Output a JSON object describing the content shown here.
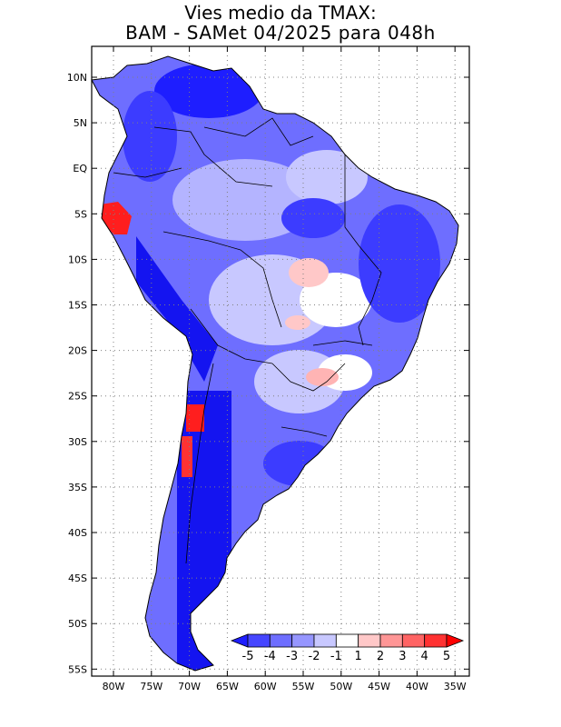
{
  "title": {
    "line1": "Vies medio da TMAX:",
    "line2": "BAM - SAMet 04/2025  para 048h"
  },
  "axes": {
    "lat_labels": [
      "10N",
      "5N",
      "EQ",
      "5S",
      "10S",
      "15S",
      "20S",
      "25S",
      "30S",
      "35S",
      "40S",
      "45S",
      "50S",
      "55S"
    ],
    "lon_labels": [
      "80W",
      "75W",
      "70W",
      "65W",
      "60W",
      "55W",
      "50W",
      "45W",
      "40W",
      "35W"
    ]
  },
  "colorbar": {
    "labels": [
      "-5",
      "-4",
      "-3",
      "-2",
      "-1",
      "1",
      "2",
      "3",
      "4",
      "5"
    ],
    "colors": [
      "#1e1eff",
      "#4646ff",
      "#6e6eff",
      "#9696ff",
      "#c8c8ff",
      "#ffffff",
      "#ffc8c8",
      "#ff9696",
      "#ff6464",
      "#ff3232",
      "#ff0000"
    ]
  },
  "colors": {
    "strong_cold": "#1414f0",
    "cold": "#3c3cff",
    "mild_cold": "#7878ff",
    "slight_cold": "#b4b4ff",
    "near_zero": "#ffffff",
    "warm": "#ff9696",
    "hot": "#ff1e1e",
    "ocean": "#ffffff",
    "border": "#000000"
  }
}
